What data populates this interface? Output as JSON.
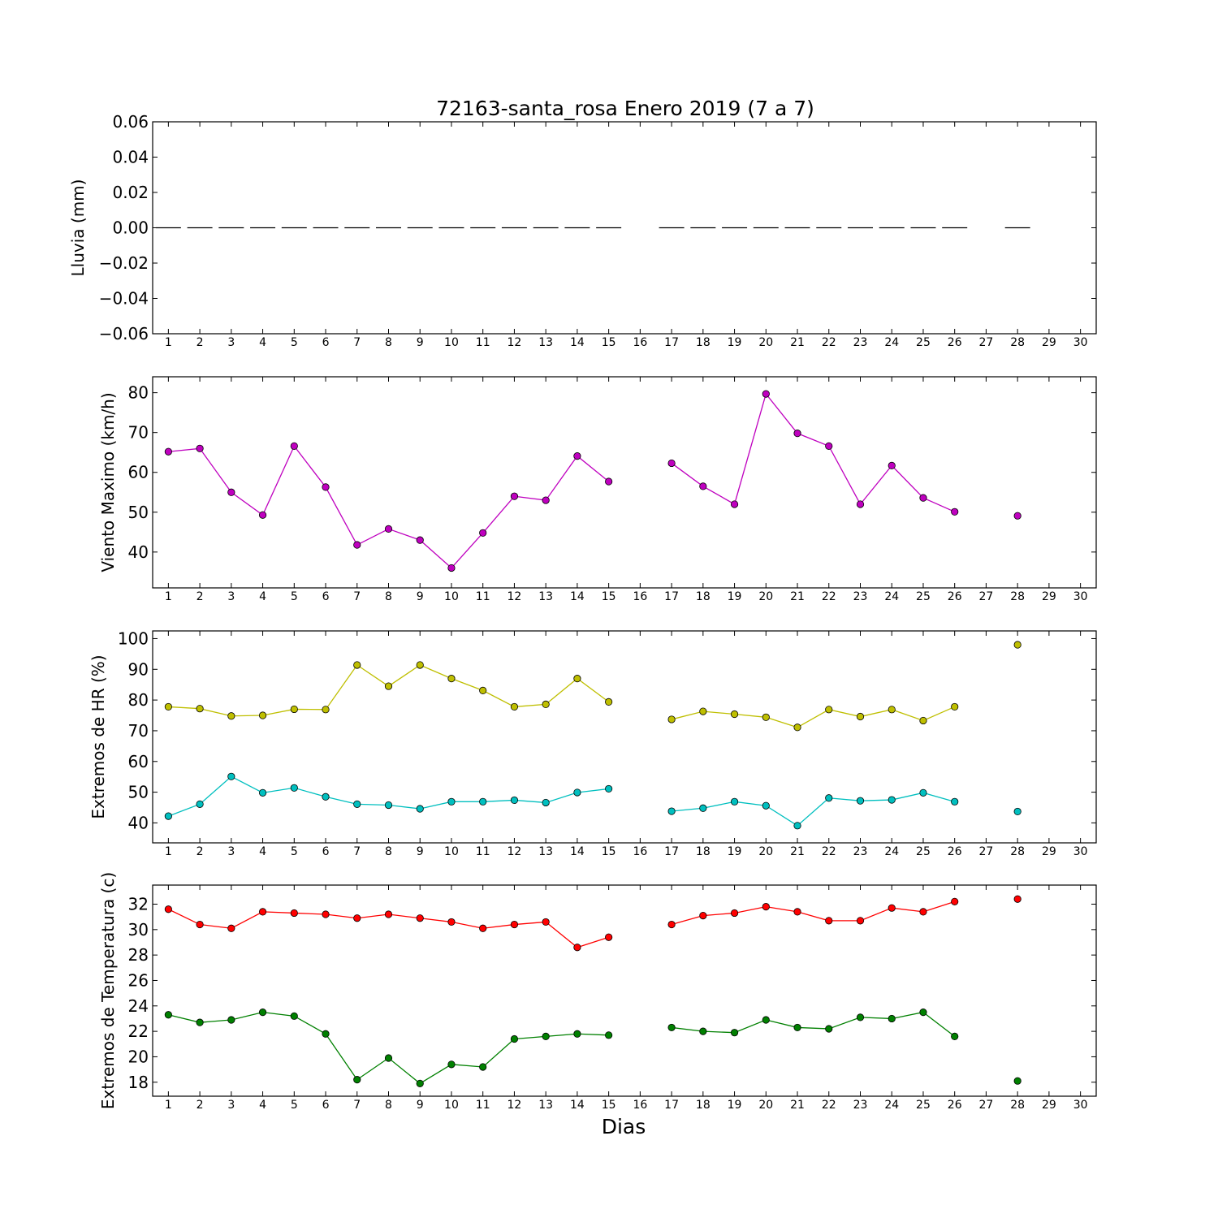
{
  "title": "72163-santa_rosa Enero 2019  (7 a 7)",
  "xlabel": "Dias",
  "chart_data": [
    {
      "type": "line",
      "ylabel": "Lluvia (mm)",
      "ylim": [
        -0.06,
        0.06
      ],
      "yticks": [
        -0.06,
        -0.04,
        -0.02,
        0.0,
        0.02,
        0.04,
        0.06
      ],
      "ytick_labels": [
        "−0.06",
        "−0.04",
        "−0.02",
        "0.00",
        "0.02",
        "0.04",
        "0.06"
      ],
      "xlim": [
        0.5,
        30.5
      ],
      "x_ticks": [
        1,
        2,
        3,
        4,
        5,
        6,
        7,
        8,
        9,
        10,
        11,
        12,
        13,
        14,
        15,
        16,
        17,
        18,
        19,
        20,
        21,
        22,
        23,
        24,
        25,
        26,
        27,
        28,
        29,
        30
      ],
      "grid": false,
      "series": [
        {
          "style": "bar-dash",
          "color": "#000000",
          "x": [
            1,
            2,
            3,
            4,
            5,
            6,
            7,
            8,
            9,
            10,
            11,
            12,
            13,
            14,
            15,
            16,
            17,
            18,
            19,
            20,
            21,
            22,
            23,
            24,
            25,
            26,
            27,
            28
          ],
          "values": [
            0,
            0,
            0,
            0,
            0,
            0,
            0,
            0,
            0,
            0,
            0,
            0,
            0,
            0,
            0,
            null,
            0,
            0,
            0,
            0,
            0,
            0,
            0,
            0,
            0,
            0,
            null,
            0
          ]
        }
      ]
    },
    {
      "type": "line",
      "ylabel": "Viento Maximo (km/h)",
      "ylim": [
        31,
        84
      ],
      "yticks": [
        40,
        50,
        60,
        70,
        80
      ],
      "ytick_labels": [
        "40",
        "50",
        "60",
        "70",
        "80"
      ],
      "xlim": [
        0.5,
        30.5
      ],
      "x_ticks": [
        1,
        2,
        3,
        4,
        5,
        6,
        7,
        8,
        9,
        10,
        11,
        12,
        13,
        14,
        15,
        16,
        17,
        18,
        19,
        20,
        21,
        22,
        23,
        24,
        25,
        26,
        27,
        28,
        29,
        30
      ],
      "grid": false,
      "series": [
        {
          "color": "#bf00bf",
          "x": [
            1,
            2,
            3,
            4,
            5,
            6,
            7,
            8,
            9,
            10,
            11,
            12,
            13,
            14,
            15,
            16,
            17,
            18,
            19,
            20,
            21,
            22,
            23,
            24,
            25,
            26,
            27,
            28
          ],
          "values": [
            65.2,
            66.0,
            55.0,
            49.3,
            66.6,
            56.3,
            41.8,
            45.8,
            43.0,
            36.0,
            44.8,
            54.0,
            53.0,
            64.1,
            57.7,
            null,
            62.3,
            56.5,
            52.0,
            79.7,
            69.8,
            66.6,
            52.0,
            61.7,
            53.6,
            50.1,
            null,
            49.1
          ]
        }
      ]
    },
    {
      "type": "line",
      "ylabel": "Extremos de HR (%)",
      "ylim": [
        33.5,
        102.5
      ],
      "yticks": [
        40,
        50,
        60,
        70,
        80,
        90,
        100
      ],
      "ytick_labels": [
        "40",
        "50",
        "60",
        "70",
        "80",
        "90",
        "100"
      ],
      "xlim": [
        0.5,
        30.5
      ],
      "x_ticks": [
        1,
        2,
        3,
        4,
        5,
        6,
        7,
        8,
        9,
        10,
        11,
        12,
        13,
        14,
        15,
        16,
        17,
        18,
        19,
        20,
        21,
        22,
        23,
        24,
        25,
        26,
        27,
        28,
        29,
        30
      ],
      "grid": false,
      "series": [
        {
          "color": "#bfbf00",
          "x": [
            1,
            2,
            3,
            4,
            5,
            6,
            7,
            8,
            9,
            10,
            11,
            12,
            13,
            14,
            15,
            16,
            17,
            18,
            19,
            20,
            21,
            22,
            23,
            24,
            25,
            26,
            27,
            28
          ],
          "values": [
            77.8,
            77.2,
            74.8,
            75.0,
            77.0,
            76.9,
            91.4,
            84.5,
            91.4,
            87.0,
            83.1,
            77.8,
            78.6,
            87.0,
            79.4,
            null,
            73.7,
            76.3,
            75.4,
            74.4,
            71.1,
            76.9,
            74.6,
            76.9,
            73.3,
            77.8,
            null,
            98.0
          ]
        },
        {
          "color": "#00bfbf",
          "x": [
            1,
            2,
            3,
            4,
            5,
            6,
            7,
            8,
            9,
            10,
            11,
            12,
            13,
            14,
            15,
            16,
            17,
            18,
            19,
            20,
            21,
            22,
            23,
            24,
            25,
            26,
            27,
            28
          ],
          "values": [
            42.2,
            46.1,
            55.1,
            49.8,
            51.4,
            48.5,
            46.1,
            45.8,
            44.6,
            46.9,
            46.9,
            47.4,
            46.6,
            49.9,
            51.1,
            null,
            43.8,
            44.8,
            46.9,
            45.6,
            39.1,
            48.1,
            47.2,
            47.5,
            49.8,
            46.9,
            null,
            43.7
          ]
        }
      ]
    },
    {
      "type": "line",
      "ylabel": "Extremos de Temperatura (c)",
      "ylim": [
        16.9,
        33.5
      ],
      "yticks": [
        18,
        20,
        22,
        24,
        26,
        28,
        30,
        32
      ],
      "ytick_labels": [
        "18",
        "20",
        "22",
        "24",
        "26",
        "28",
        "30",
        "32"
      ],
      "xlim": [
        0.5,
        30.5
      ],
      "x_ticks": [
        1,
        2,
        3,
        4,
        5,
        6,
        7,
        8,
        9,
        10,
        11,
        12,
        13,
        14,
        15,
        16,
        17,
        18,
        19,
        20,
        21,
        22,
        23,
        24,
        25,
        26,
        27,
        28,
        29,
        30
      ],
      "grid": false,
      "series": [
        {
          "color": "#ff0000",
          "x": [
            1,
            2,
            3,
            4,
            5,
            6,
            7,
            8,
            9,
            10,
            11,
            12,
            13,
            14,
            15,
            16,
            17,
            18,
            19,
            20,
            21,
            22,
            23,
            24,
            25,
            26,
            27,
            28
          ],
          "values": [
            31.6,
            30.4,
            30.1,
            31.4,
            31.3,
            31.2,
            30.9,
            31.2,
            30.9,
            30.6,
            30.1,
            30.4,
            30.6,
            28.6,
            29.4,
            null,
            30.4,
            31.1,
            31.3,
            31.8,
            31.4,
            30.7,
            30.7,
            31.7,
            31.4,
            32.2,
            null,
            32.4
          ]
        },
        {
          "color": "#008000",
          "x": [
            1,
            2,
            3,
            4,
            5,
            6,
            7,
            8,
            9,
            10,
            11,
            12,
            13,
            14,
            15,
            16,
            17,
            18,
            19,
            20,
            21,
            22,
            23,
            24,
            25,
            26,
            27,
            28
          ],
          "values": [
            23.3,
            22.7,
            22.9,
            23.5,
            23.2,
            21.8,
            18.2,
            19.9,
            17.9,
            19.4,
            19.2,
            21.4,
            21.6,
            21.8,
            21.7,
            null,
            22.3,
            22.0,
            21.9,
            22.9,
            22.3,
            22.2,
            23.1,
            23.0,
            23.5,
            21.6,
            null,
            18.1
          ]
        }
      ]
    }
  ]
}
